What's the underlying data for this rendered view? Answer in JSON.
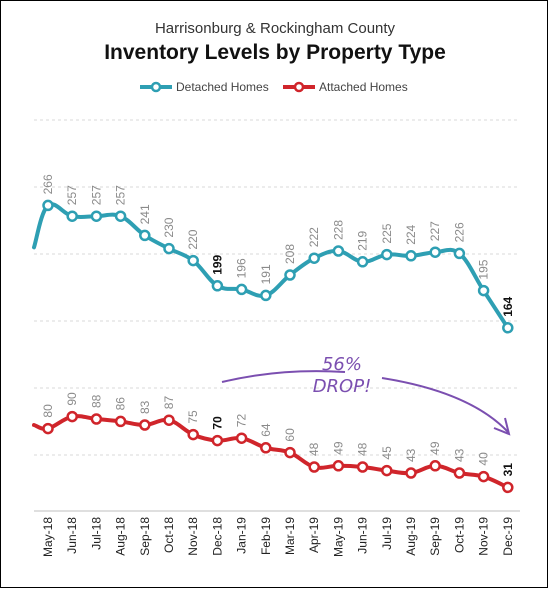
{
  "chart_data": {
    "type": "line",
    "subtitle": "Harrisonburg & Rockingham County",
    "title": "Inventory Levels by Property Type",
    "xlabel": "",
    "ylabel": "",
    "categories": [
      "May-18",
      "Jun-18",
      "Jul-18",
      "Aug-18",
      "Sep-18",
      "Oct-18",
      "Nov-18",
      "Dec-18",
      "Jan-19",
      "Feb-19",
      "Mar-19",
      "Apr-19",
      "May-19",
      "Jun-19",
      "Jul-19",
      "Aug-19",
      "Sep-19",
      "Oct-19",
      "Nov-19",
      "Dec-19"
    ],
    "series": [
      {
        "name": "Detached Homes",
        "color": "#2e9fb3",
        "lead_in": 231,
        "values": [
          266,
          257,
          257,
          257,
          241,
          230,
          220,
          199,
          196,
          191,
          208,
          222,
          228,
          219,
          225,
          224,
          227,
          226,
          195,
          164
        ],
        "bold_labels": [
          7,
          19
        ]
      },
      {
        "name": "Attached Homes",
        "color": "#d0252b",
        "lead_in": 83,
        "values": [
          80,
          90,
          88,
          86,
          83,
          87,
          75,
          70,
          72,
          64,
          60,
          48,
          49,
          48,
          45,
          43,
          49,
          43,
          40,
          31
        ],
        "bold_labels": [
          7,
          19
        ]
      }
    ],
    "legend_position": "top-center",
    "grid": "horizontal-dashed",
    "annotation": {
      "lines": [
        "56%",
        "DROP!"
      ],
      "color": "#7b4fb0"
    }
  }
}
